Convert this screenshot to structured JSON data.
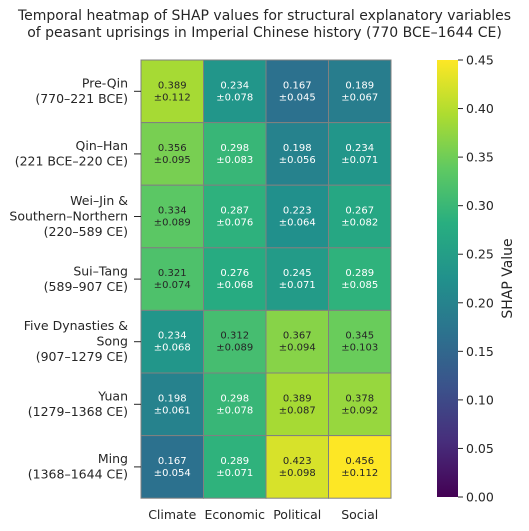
{
  "chart_data": {
    "type": "heatmap",
    "title": "Temporal heatmap of SHAP values for structural explanatory variables of peasant uprisings in Imperial Chinese history (770 BCE–1644 CE)",
    "title_lines": [
      "Temporal heatmap of SHAP values for structural explanatory variables",
      "of peasant uprisings in Imperial Chinese history (770 BCE–1644 CE)"
    ],
    "columns": [
      "Climate",
      "Economic",
      "Political",
      "Social"
    ],
    "rows": [
      {
        "label": "Pre-Qin\n(770–221 BCE)",
        "values": [
          0.389,
          0.234,
          0.167,
          0.189
        ],
        "errors": [
          0.112,
          0.078,
          0.045,
          0.067
        ]
      },
      {
        "label": "Qin–Han\n(221 BCE–220 CE)",
        "values": [
          0.356,
          0.298,
          0.198,
          0.234
        ],
        "errors": [
          0.095,
          0.083,
          0.056,
          0.071
        ]
      },
      {
        "label": "Wei–Jin &\nSouthern–Northern\n(220–589 CE)",
        "values": [
          0.334,
          0.287,
          0.223,
          0.267
        ],
        "errors": [
          0.089,
          0.076,
          0.064,
          0.082
        ]
      },
      {
        "label": "Sui–Tang\n(589–907 CE)",
        "values": [
          0.321,
          0.276,
          0.245,
          0.289
        ],
        "errors": [
          0.074,
          0.068,
          0.071,
          0.085
        ]
      },
      {
        "label": "Five Dynasties &\nSong\n(907–1279 CE)",
        "values": [
          0.234,
          0.312,
          0.367,
          0.345
        ],
        "errors": [
          0.068,
          0.089,
          0.094,
          0.103
        ]
      },
      {
        "label": "Yuan\n(1279–1368 CE)",
        "values": [
          0.198,
          0.298,
          0.389,
          0.378
        ],
        "errors": [
          0.061,
          0.078,
          0.087,
          0.092
        ]
      },
      {
        "label": "Ming\n(1368–1644 CE)",
        "values": [
          0.167,
          0.289,
          0.423,
          0.456
        ],
        "errors": [
          0.054,
          0.071,
          0.098,
          0.112
        ]
      }
    ],
    "colorbar": {
      "label": "SHAP Value",
      "colormap": "viridis",
      "range": [
        0.0,
        0.45
      ],
      "ticks": [
        0.0,
        0.05,
        0.1,
        0.15,
        0.2,
        0.25,
        0.3,
        0.35,
        0.4,
        0.45
      ],
      "tick_labels": [
        "0.00",
        "0.05",
        "0.10",
        "0.15",
        "0.20",
        "0.25",
        "0.30",
        "0.35",
        "0.40",
        "0.45"
      ]
    },
    "cell_border_color": "#808080"
  }
}
